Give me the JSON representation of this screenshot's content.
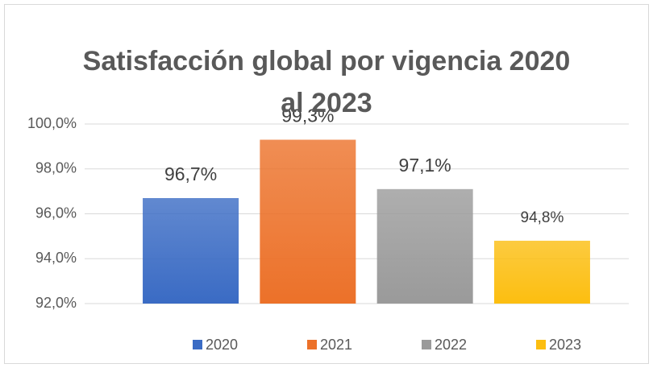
{
  "chart_data": {
    "type": "bar",
    "title": "Satisfacción global por vigencia 2020 al 2023",
    "series": [
      {
        "name": "2020",
        "color": "#3a6bc4",
        "values": [
          96.7
        ],
        "value_labels": [
          "96,7%"
        ]
      },
      {
        "name": "2021",
        "color": "#ec7129",
        "values": [
          99.3
        ],
        "value_labels": [
          "99,3%"
        ]
      },
      {
        "name": "2022",
        "color": "#9a9a9a",
        "values": [
          97.1
        ],
        "value_labels": [
          "97,1%"
        ]
      },
      {
        "name": "2023",
        "color": "#fcbe10",
        "values": [
          94.8
        ],
        "value_labels": [
          "94,8%"
        ]
      }
    ],
    "ylim": [
      92,
      100
    ],
    "yticks": [
      {
        "value": 92,
        "label": "92,0%"
      },
      {
        "value": 94,
        "label": "94,0%"
      },
      {
        "value": 96,
        "label": "96,0%"
      },
      {
        "value": 98,
        "label": "98,0%"
      },
      {
        "value": 100,
        "label": "100,0%"
      }
    ],
    "grid": true,
    "legend": "bottom"
  }
}
